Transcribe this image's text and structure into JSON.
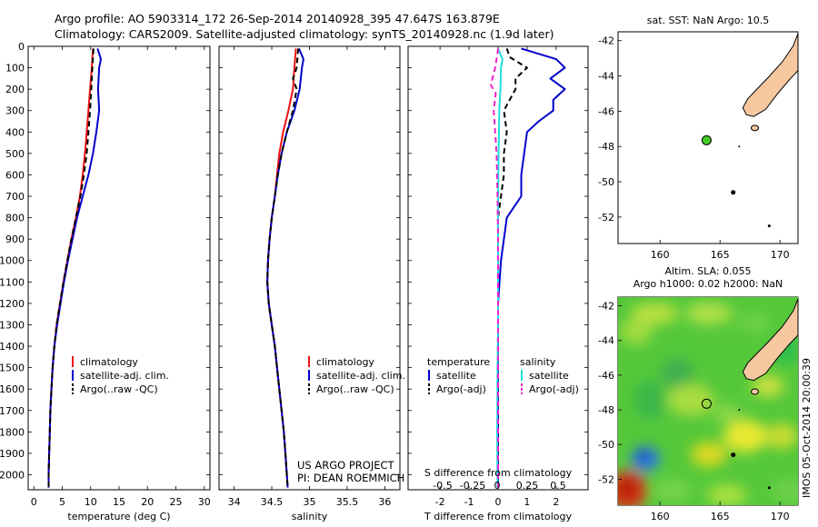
{
  "figure_title": {
    "line1": "Argo profile: AO 5903314_172 26-Sep-2014 20140928_395 47.647S 163.879E",
    "line2": "Climatology: CARS2009. Satellite-adjusted climatology: synTS_20140928.nc (1.9d later)"
  },
  "colors": {
    "climatology": "#ee1111",
    "satellite": "#0000cc",
    "argo": "#000000",
    "sal_satellite": "#22dddd",
    "sal_argo": "#ee22cc",
    "land": "#f7c8a0",
    "float_marker": "#44cc22"
  },
  "project_note": {
    "line1": "US ARGO PROJECT",
    "line2": "PI: DEAN ROEMMICH"
  },
  "side_label": "IMOS 05-Oct-2014 20:00:39",
  "chart_data": [
    {
      "type": "line",
      "id": "temperature",
      "xlabel": "temperature (deg C)",
      "ylabel": "",
      "xlim": [
        -1,
        31
      ],
      "ylim": [
        2070,
        0
      ],
      "xticks": [
        0,
        5,
        10,
        15,
        20,
        25,
        30
      ],
      "yticks": [
        0,
        100,
        200,
        300,
        400,
        500,
        600,
        700,
        800,
        900,
        1000,
        1100,
        1200,
        1300,
        1400,
        1500,
        1600,
        1700,
        1800,
        1900,
        2000
      ],
      "legend": [
        "climatology",
        "satellite-adj. clim.",
        "Argo(..raw -QC)"
      ],
      "series": [
        {
          "name": "climatology",
          "style": "solid",
          "color": "#ee1111",
          "points": [
            [
              10.4,
              10
            ],
            [
              10.2,
              100
            ],
            [
              9.9,
              200
            ],
            [
              9.6,
              300
            ],
            [
              9.3,
              400
            ],
            [
              9.0,
              500
            ],
            [
              8.6,
              600
            ],
            [
              8.1,
              700
            ],
            [
              7.4,
              800
            ],
            [
              6.6,
              900
            ],
            [
              5.9,
              1000
            ],
            [
              5.2,
              1100
            ],
            [
              4.6,
              1200
            ],
            [
              4.0,
              1300
            ],
            [
              3.6,
              1400
            ],
            [
              3.3,
              1500
            ],
            [
              3.1,
              1600
            ],
            [
              2.9,
              1700
            ],
            [
              2.8,
              1800
            ],
            [
              2.7,
              1900
            ],
            [
              2.6,
              2000
            ],
            [
              2.6,
              2060
            ]
          ]
        },
        {
          "name": "satellite-adj. clim.",
          "style": "solid",
          "color": "#0000cc",
          "points": [
            [
              11.2,
              10
            ],
            [
              11.8,
              60
            ],
            [
              11.5,
              100
            ],
            [
              11.3,
              200
            ],
            [
              11.5,
              300
            ],
            [
              11.0,
              400
            ],
            [
              10.4,
              500
            ],
            [
              9.6,
              600
            ],
            [
              8.6,
              700
            ],
            [
              7.6,
              800
            ],
            [
              6.8,
              900
            ],
            [
              6.0,
              1000
            ],
            [
              5.3,
              1100
            ],
            [
              4.7,
              1200
            ],
            [
              4.1,
              1300
            ],
            [
              3.6,
              1400
            ],
            [
              3.3,
              1500
            ],
            [
              3.1,
              1600
            ],
            [
              2.9,
              1700
            ],
            [
              2.8,
              1800
            ],
            [
              2.7,
              1900
            ],
            [
              2.6,
              2000
            ],
            [
              2.6,
              2060
            ]
          ]
        },
        {
          "name": "Argo(..raw -QC)",
          "style": "dashed",
          "color": "#000000",
          "points": [
            [
              10.5,
              10
            ],
            [
              10.3,
              100
            ],
            [
              10.1,
              200
            ],
            [
              9.9,
              300
            ],
            [
              9.6,
              400
            ],
            [
              9.3,
              500
            ],
            [
              8.8,
              600
            ],
            [
              8.2,
              700
            ],
            [
              7.4,
              800
            ],
            [
              6.6,
              900
            ],
            [
              5.9,
              1000
            ],
            [
              5.2,
              1100
            ],
            [
              4.6,
              1200
            ],
            [
              4.0,
              1300
            ],
            [
              3.6,
              1400
            ],
            [
              3.3,
              1500
            ],
            [
              3.1,
              1600
            ],
            [
              2.9,
              1700
            ],
            [
              2.8,
              1800
            ],
            [
              2.7,
              1900
            ],
            [
              2.6,
              2000
            ],
            [
              2.6,
              2060
            ]
          ]
        }
      ]
    },
    {
      "type": "line",
      "id": "salinity",
      "xlabel": "salinity",
      "ylabel": "",
      "xlim": [
        33.8,
        36.2
      ],
      "ylim": [
        2070,
        0
      ],
      "xticks": [
        34,
        34.5,
        35,
        35.5,
        36
      ],
      "yticks": [
        0,
        100,
        200,
        300,
        400,
        500,
        600,
        700,
        800,
        900,
        1000,
        1100,
        1200,
        1300,
        1400,
        1500,
        1600,
        1700,
        1800,
        1900,
        2000
      ],
      "legend": [
        "climatology",
        "satellite-adj. clim.",
        "Argo(..raw -QC)"
      ],
      "series": [
        {
          "name": "climatology",
          "style": "solid",
          "color": "#ee1111",
          "points": [
            [
              34.82,
              10
            ],
            [
              34.8,
              100
            ],
            [
              34.78,
              200
            ],
            [
              34.72,
              300
            ],
            [
              34.65,
              400
            ],
            [
              34.6,
              500
            ],
            [
              34.57,
              600
            ],
            [
              34.54,
              700
            ],
            [
              34.5,
              800
            ],
            [
              34.47,
              900
            ],
            [
              34.45,
              1000
            ],
            [
              34.44,
              1100
            ],
            [
              34.46,
              1200
            ],
            [
              34.5,
              1300
            ],
            [
              34.54,
              1400
            ],
            [
              34.57,
              1500
            ],
            [
              34.6,
              1600
            ],
            [
              34.63,
              1700
            ],
            [
              34.66,
              1800
            ],
            [
              34.68,
              1900
            ],
            [
              34.7,
              2000
            ],
            [
              34.71,
              2060
            ]
          ]
        },
        {
          "name": "satellite-adj. clim.",
          "style": "solid",
          "color": "#0000cc",
          "points": [
            [
              34.86,
              10
            ],
            [
              34.92,
              60
            ],
            [
              34.9,
              100
            ],
            [
              34.87,
              200
            ],
            [
              34.8,
              300
            ],
            [
              34.7,
              400
            ],
            [
              34.63,
              500
            ],
            [
              34.58,
              600
            ],
            [
              34.54,
              700
            ],
            [
              34.5,
              800
            ],
            [
              34.47,
              900
            ],
            [
              34.45,
              1000
            ],
            [
              34.44,
              1100
            ],
            [
              34.46,
              1200
            ],
            [
              34.5,
              1300
            ],
            [
              34.54,
              1400
            ],
            [
              34.57,
              1500
            ],
            [
              34.6,
              1600
            ],
            [
              34.63,
              1700
            ],
            [
              34.66,
              1800
            ],
            [
              34.68,
              1900
            ],
            [
              34.7,
              2000
            ],
            [
              34.71,
              2060
            ]
          ]
        },
        {
          "name": "Argo(..raw -QC)",
          "style": "dashed",
          "color": "#000000",
          "points": [
            [
              34.85,
              10
            ],
            [
              34.83,
              100
            ],
            [
              34.78,
              150
            ],
            [
              34.83,
              200
            ],
            [
              34.78,
              300
            ],
            [
              34.7,
              400
            ],
            [
              34.63,
              500
            ],
            [
              34.58,
              600
            ],
            [
              34.54,
              700
            ],
            [
              34.5,
              800
            ],
            [
              34.47,
              900
            ],
            [
              34.45,
              1000
            ],
            [
              34.44,
              1100
            ],
            [
              34.46,
              1200
            ],
            [
              34.5,
              1300
            ],
            [
              34.54,
              1400
            ],
            [
              34.57,
              1500
            ],
            [
              34.6,
              1600
            ],
            [
              34.63,
              1700
            ],
            [
              34.66,
              1800
            ],
            [
              34.68,
              1900
            ],
            [
              34.7,
              2000
            ],
            [
              34.71,
              2060
            ]
          ]
        }
      ]
    },
    {
      "type": "line",
      "id": "difference",
      "xlabel": "T difference from climatology",
      "xlabel_top": "S difference from climatology",
      "ylabel": "",
      "xlim": [
        -3.1,
        3.1
      ],
      "ylim": [
        2070,
        0
      ],
      "xticks": [
        -2,
        -1,
        0,
        1,
        2
      ],
      "s_ticks": [
        -0.5,
        -0.25,
        0,
        0.25,
        0.5
      ],
      "yticks": [
        0,
        100,
        200,
        300,
        400,
        500,
        600,
        700,
        800,
        900,
        1000,
        1100,
        1200,
        1300,
        1400,
        1500,
        1600,
        1700,
        1800,
        1900,
        2000
      ],
      "legend_temperature": {
        "title": "temperature",
        "items": [
          "satellite",
          "Argo(-adj)"
        ]
      },
      "legend_salinity": {
        "title": "salinity",
        "items": [
          "satellite",
          "Argo(-adj)"
        ]
      },
      "series": [
        {
          "name": "temperature satellite",
          "style": "solid",
          "color": "#0000cc",
          "points": [
            [
              0.8,
              10
            ],
            [
              2.0,
              60
            ],
            [
              2.3,
              100
            ],
            [
              1.8,
              150
            ],
            [
              2.3,
              200
            ],
            [
              1.9,
              250
            ],
            [
              1.9,
              300
            ],
            [
              1.4,
              350
            ],
            [
              1.0,
              400
            ],
            [
              0.9,
              500
            ],
            [
              0.8,
              600
            ],
            [
              0.8,
              700
            ],
            [
              0.3,
              800
            ],
            [
              0.2,
              900
            ],
            [
              0.1,
              1000
            ],
            [
              0.05,
              1100
            ],
            [
              0.0,
              1200
            ],
            [
              0.0,
              1400
            ],
            [
              0.0,
              1600
            ],
            [
              0.0,
              1800
            ],
            [
              0.0,
              2000
            ],
            [
              0.0,
              2060
            ]
          ]
        },
        {
          "name": "temperature Argo(-adj)",
          "style": "dashed",
          "color": "#000000",
          "points": [
            [
              0.3,
              10
            ],
            [
              0.4,
              50
            ],
            [
              1.0,
              100
            ],
            [
              0.6,
              150
            ],
            [
              0.6,
              200
            ],
            [
              0.2,
              300
            ],
            [
              0.3,
              400
            ],
            [
              0.2,
              500
            ],
            [
              0.2,
              600
            ],
            [
              0.1,
              700
            ],
            [
              0.0,
              800
            ],
            [
              0.0,
              1000
            ],
            [
              0.0,
              1200
            ],
            [
              0.0,
              1500
            ],
            [
              0.0,
              1800
            ],
            [
              0.0,
              2060
            ]
          ]
        },
        {
          "name": "salinity satellite",
          "style": "solid",
          "color": "#22dddd",
          "points": [
            [
              0.0,
              10
            ],
            [
              0.15,
              60
            ],
            [
              0.1,
              100
            ],
            [
              0.08,
              200
            ],
            [
              0.04,
              300
            ],
            [
              0.02,
              500
            ],
            [
              0.0,
              700
            ],
            [
              0.0,
              1000
            ],
            [
              0.0,
              1300
            ],
            [
              -0.02,
              1500
            ],
            [
              -0.03,
              1800
            ],
            [
              -0.02,
              2060
            ]
          ]
        },
        {
          "name": "salinity Argo(-adj)",
          "style": "dashed",
          "color": "#ee22cc",
          "points": [
            [
              0.0,
              10
            ],
            [
              -0.05,
              60
            ],
            [
              -0.1,
              100
            ],
            [
              -0.25,
              180
            ],
            [
              -0.08,
              220
            ],
            [
              -0.15,
              300
            ],
            [
              -0.1,
              400
            ],
            [
              -0.05,
              500
            ],
            [
              -0.02,
              700
            ],
            [
              0.0,
              900
            ],
            [
              0.0,
              1200
            ],
            [
              0.0,
              1500
            ],
            [
              0.0,
              1800
            ],
            [
              0.0,
              2060
            ]
          ]
        }
      ]
    },
    {
      "type": "map",
      "id": "sst_map",
      "title": "sat. SST: NaN Argo: 10.5",
      "xlim": [
        156.5,
        171.5
      ],
      "ylim": [
        -53.5,
        -41.5
      ],
      "xticks": [
        160,
        165,
        170
      ],
      "yticks": [
        -42,
        -44,
        -46,
        -48,
        -50,
        -52
      ],
      "float_position": {
        "lon": 163.879,
        "lat": -47.647
      }
    },
    {
      "type": "heatmap",
      "id": "sla_map",
      "title_line1": "Altim. SLA: 0.055",
      "title_line2": "Argo h1000: 0.02 h2000: NaN",
      "xlim": [
        156.5,
        171.5
      ],
      "ylim": [
        -53.5,
        -41.5
      ],
      "xticks": [
        160,
        165,
        170
      ],
      "yticks": [
        -42,
        -44,
        -46,
        -48,
        -50,
        -52
      ],
      "float_position": {
        "lon": 163.879,
        "lat": -47.647
      }
    }
  ]
}
